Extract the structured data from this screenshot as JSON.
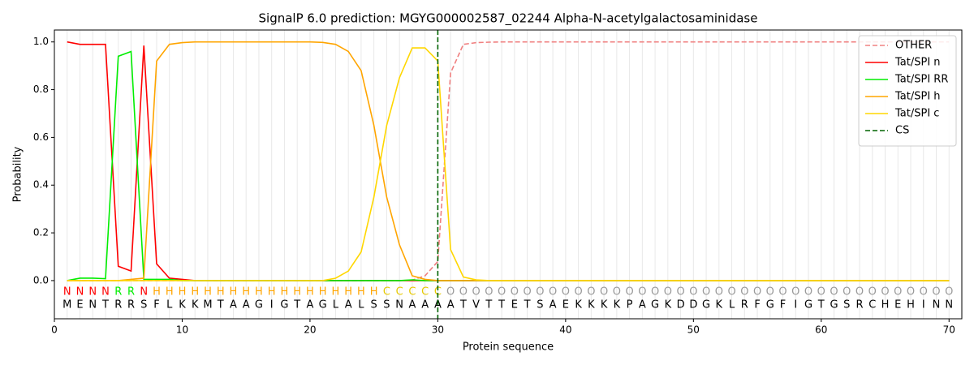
{
  "chart_data": {
    "type": "line",
    "title": "SignalP 6.0 prediction: MGYG000002587_02244 Alpha-N-acetylgalactosaminidase",
    "xlabel": "Protein sequence",
    "ylabel": "Probability",
    "x": [
      1,
      2,
      3,
      4,
      5,
      6,
      7,
      8,
      9,
      10,
      11,
      12,
      13,
      14,
      15,
      16,
      17,
      18,
      19,
      20,
      21,
      22,
      23,
      24,
      25,
      26,
      27,
      28,
      29,
      30,
      31,
      32,
      33,
      34,
      35,
      36,
      37,
      38,
      39,
      40,
      41,
      42,
      43,
      44,
      45,
      46,
      47,
      48,
      49,
      50,
      51,
      52,
      53,
      54,
      55,
      56,
      57,
      58,
      59,
      60,
      61,
      62,
      63,
      64,
      65,
      66,
      67,
      68,
      69,
      70
    ],
    "sequence": [
      "M",
      "E",
      "N",
      "T",
      "R",
      "R",
      "S",
      "F",
      "L",
      "K",
      "K",
      "M",
      "T",
      "A",
      "A",
      "G",
      "I",
      "G",
      "T",
      "A",
      "G",
      "L",
      "A",
      "L",
      "S",
      "S",
      "N",
      "A",
      "A",
      "A",
      "A",
      "T",
      "V",
      "T",
      "T",
      "E",
      "T",
      "S",
      "A",
      "E",
      "K",
      "K",
      "K",
      "K",
      "P",
      "A",
      "G",
      "K",
      "D",
      "D",
      "G",
      "K",
      "L",
      "R",
      "F",
      "G",
      "F",
      "I",
      "G",
      "T",
      "G",
      "S",
      "R",
      "C",
      "H",
      "E",
      "H",
      "I",
      "N",
      "N"
    ],
    "labels": [
      "N",
      "N",
      "N",
      "N",
      "R",
      "R",
      "N",
      "H",
      "H",
      "H",
      "H",
      "H",
      "H",
      "H",
      "H",
      "H",
      "H",
      "H",
      "H",
      "H",
      "H",
      "H",
      "H",
      "H",
      "H",
      "C",
      "C",
      "C",
      "C",
      "C",
      "O",
      "O",
      "O",
      "O",
      "O",
      "O",
      "O",
      "O",
      "O",
      "O",
      "O",
      "O",
      "O",
      "O",
      "O",
      "O",
      "O",
      "O",
      "O",
      "O",
      "O",
      "O",
      "O",
      "O",
      "O",
      "O",
      "O",
      "O",
      "O",
      "O",
      "O",
      "O",
      "O",
      "O",
      "O",
      "O",
      "O",
      "O",
      "O",
      "O"
    ],
    "label_colors": {
      "N": "#ff0000",
      "R": "#00ee00",
      "H": "#ffa500",
      "C": "#e6c800",
      "O": "#999999"
    },
    "series": [
      {
        "name": "OTHER",
        "color": "#f08080",
        "linestyle": "dashed",
        "values": [
          0,
          0,
          0,
          0,
          0,
          0,
          0,
          0,
          0,
          0,
          0,
          0,
          0,
          0,
          0,
          0,
          0,
          0,
          0,
          0,
          0,
          0,
          0,
          0,
          0,
          0,
          0,
          0.002,
          0.02,
          0.08,
          0.87,
          0.99,
          0.997,
          0.999,
          1,
          1,
          1,
          1,
          1,
          1,
          1,
          1,
          1,
          1,
          1,
          1,
          1,
          1,
          1,
          1,
          1,
          1,
          1,
          1,
          1,
          1,
          1,
          1,
          1,
          1,
          1,
          1,
          1,
          1,
          1,
          1,
          1,
          1,
          1,
          1
        ]
      },
      {
        "name": "Tat/SPI n",
        "color": "#ff0000",
        "linestyle": "solid",
        "values": [
          1.0,
          0.99,
          0.99,
          0.99,
          0.06,
          0.04,
          0.985,
          0.07,
          0.01,
          0.005,
          0,
          0,
          0,
          0,
          0,
          0,
          0,
          0,
          0,
          0,
          0,
          0,
          0,
          0,
          0,
          0,
          0,
          0,
          0,
          0,
          0,
          0,
          0,
          0,
          0,
          0,
          0,
          0,
          0,
          0,
          0,
          0,
          0,
          0,
          0,
          0,
          0,
          0,
          0,
          0,
          0,
          0,
          0,
          0,
          0,
          0,
          0,
          0,
          0,
          0,
          0,
          0,
          0,
          0,
          0,
          0,
          0,
          0,
          0,
          0
        ]
      },
      {
        "name": "Tat/SPI RR",
        "color": "#00ee00",
        "linestyle": "solid",
        "values": [
          0,
          0.01,
          0.01,
          0.008,
          0.94,
          0.96,
          0.005,
          0.005,
          0.005,
          0,
          0,
          0,
          0,
          0,
          0,
          0,
          0,
          0,
          0,
          0,
          0,
          0,
          0,
          0,
          0,
          0,
          0,
          0.003,
          0,
          0,
          0,
          0,
          0,
          0,
          0,
          0,
          0,
          0,
          0,
          0,
          0,
          0,
          0,
          0,
          0,
          0,
          0,
          0,
          0,
          0,
          0,
          0,
          0,
          0,
          0,
          0,
          0,
          0,
          0,
          0,
          0,
          0,
          0,
          0,
          0,
          0,
          0,
          0,
          0,
          0
        ]
      },
      {
        "name": "Tat/SPI h",
        "color": "#ffa500",
        "linestyle": "solid",
        "values": [
          0,
          0,
          0,
          0,
          0,
          0.005,
          0.01,
          0.92,
          0.99,
          0.997,
          1,
          1,
          1,
          1,
          1,
          1,
          1,
          1,
          1,
          1,
          0.998,
          0.99,
          0.96,
          0.88,
          0.65,
          0.35,
          0.15,
          0.02,
          0.005,
          0,
          0,
          0,
          0,
          0,
          0,
          0,
          0,
          0,
          0,
          0,
          0,
          0,
          0,
          0,
          0,
          0,
          0,
          0,
          0,
          0,
          0,
          0,
          0,
          0,
          0,
          0,
          0,
          0,
          0,
          0,
          0,
          0,
          0,
          0,
          0,
          0,
          0,
          0,
          0,
          0
        ]
      },
      {
        "name": "Tat/SPI c",
        "color": "#ffd700",
        "linestyle": "solid",
        "values": [
          0,
          0,
          0,
          0,
          0,
          0,
          0,
          0,
          0,
          0,
          0,
          0,
          0,
          0,
          0,
          0,
          0,
          0,
          0,
          0,
          0,
          0.01,
          0.04,
          0.12,
          0.35,
          0.65,
          0.85,
          0.975,
          0.975,
          0.92,
          0.13,
          0.015,
          0.003,
          0,
          0,
          0,
          0,
          0,
          0,
          0,
          0,
          0,
          0,
          0,
          0,
          0,
          0,
          0,
          0,
          0,
          0,
          0,
          0,
          0,
          0,
          0,
          0,
          0,
          0,
          0,
          0,
          0,
          0,
          0,
          0,
          0,
          0,
          0,
          0,
          0
        ]
      }
    ],
    "markers": [
      {
        "name": "CS",
        "x": 30,
        "color": "#006400"
      }
    ],
    "xlim": [
      0,
      71
    ],
    "ylim": [
      -0.16,
      1.05
    ],
    "xticks": [
      0,
      10,
      20,
      30,
      40,
      50,
      60,
      70
    ],
    "yticks": [
      {
        "value": 0,
        "label": "0.0"
      },
      0.2,
      0.4,
      0.6,
      0.8,
      {
        "value": 1,
        "label": "1.0"
      }
    ],
    "legend": "upper right"
  }
}
